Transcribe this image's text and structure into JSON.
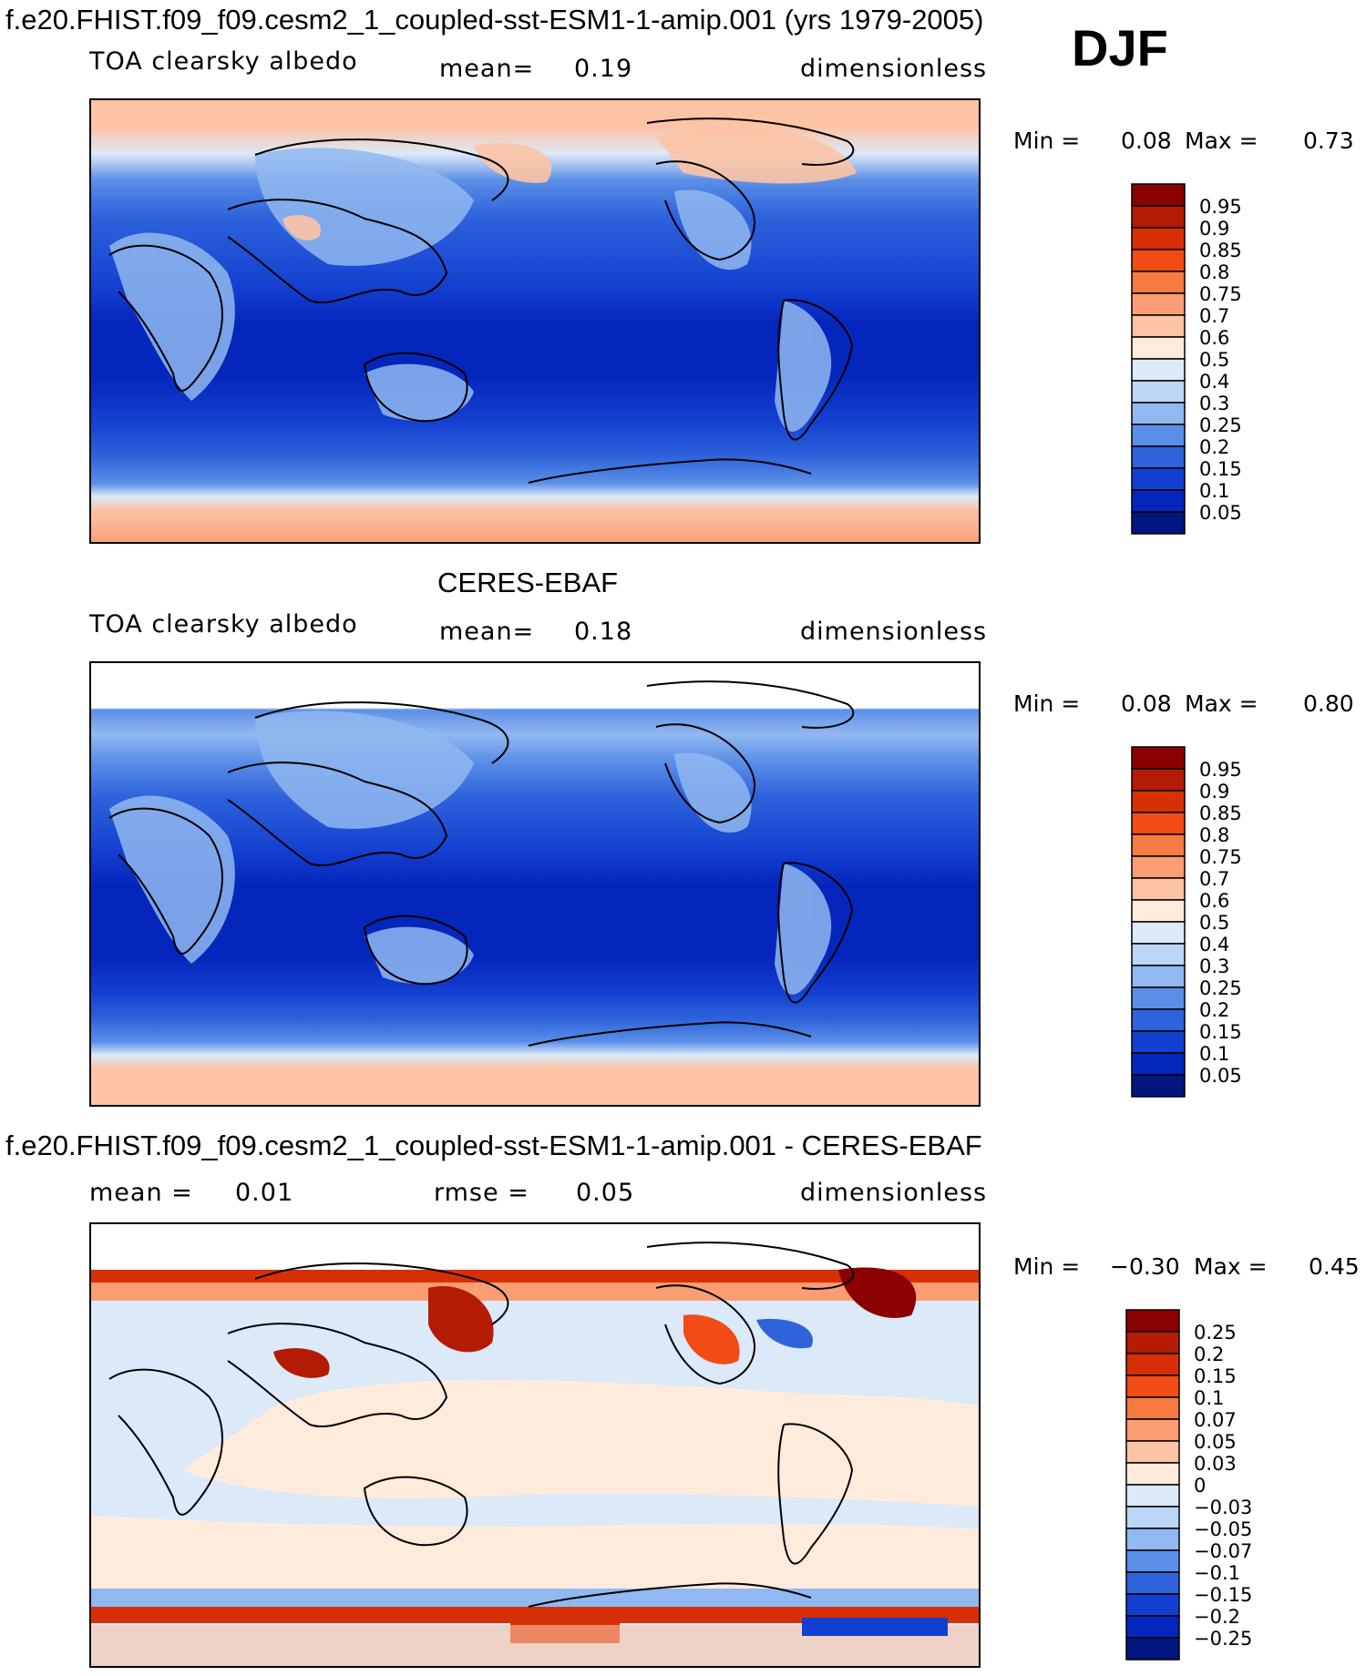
{
  "season": "DJF",
  "panels": [
    {
      "title": "f.e20.FHIST.f09_f09.cesm2_1_coupled-sst-ESM1-1-amip.001 (yrs 1979-2005)",
      "left_label": "TOA clearsky albedo",
      "center_label": "mean=",
      "center_value": "0.19",
      "units": "dimensionless",
      "min_label": "Min =",
      "min_value": "0.08",
      "max_label": "Max =",
      "max_value": "0.73"
    },
    {
      "title": "CERES-EBAF",
      "left_label": "TOA clearsky albedo",
      "center_label": "mean=",
      "center_value": "0.18",
      "units": "dimensionless",
      "min_label": "Min =",
      "min_value": "0.08",
      "max_label": "Max =",
      "max_value": "0.80"
    },
    {
      "title": "f.e20.FHIST.f09_f09.cesm2_1_coupled-sst-ESM1-1-amip.001 - CERES-EBAF",
      "left_label": "mean =",
      "left_value": "0.01",
      "center_label": "rmse =",
      "center_value": "0.05",
      "units": "dimensionless",
      "min_label": "Min =",
      "min_value": "−0.30",
      "max_label": "Max =",
      "max_value": "0.45"
    }
  ],
  "chart_data": [
    {
      "type": "heatmap",
      "field": "TOA clearsky albedo",
      "units": "dimensionless",
      "mean": 0.19,
      "min": 0.08,
      "max": 0.73,
      "colorbar": {
        "labels": [
          "0.95",
          "0.9",
          "0.85",
          "0.8",
          "0.75",
          "0.7",
          "0.6",
          "0.5",
          "0.4",
          "0.3",
          "0.25",
          "0.2",
          "0.15",
          "0.1",
          "0.05"
        ],
        "colors": [
          "#8b0000",
          "#b41b04",
          "#d83006",
          "#f24c16",
          "#f77a43",
          "#fa9d72",
          "#fcc3a5",
          "#feebdb",
          "#dce9f9",
          "#bcd6f6",
          "#91b8f0",
          "#5b8fe7",
          "#2e63dc",
          "#1340d0",
          "#0526bc",
          "#021680"
        ]
      }
    },
    {
      "type": "heatmap",
      "field": "TOA clearsky albedo",
      "units": "dimensionless",
      "mean": 0.18,
      "min": 0.08,
      "max": 0.8,
      "colorbar": {
        "labels": [
          "0.95",
          "0.9",
          "0.85",
          "0.8",
          "0.75",
          "0.7",
          "0.6",
          "0.5",
          "0.4",
          "0.3",
          "0.25",
          "0.2",
          "0.15",
          "0.1",
          "0.05"
        ],
        "colors": [
          "#8b0000",
          "#b41b04",
          "#d83006",
          "#f24c16",
          "#f77a43",
          "#fa9d72",
          "#fcc3a5",
          "#feebdb",
          "#dce9f9",
          "#bcd6f6",
          "#91b8f0",
          "#5b8fe7",
          "#2e63dc",
          "#1340d0",
          "#0526bc",
          "#021680"
        ]
      }
    },
    {
      "type": "heatmap",
      "field": "difference",
      "units": "dimensionless",
      "mean": 0.01,
      "rmse": 0.05,
      "min": -0.3,
      "max": 0.45,
      "colorbar": {
        "labels": [
          "0.25",
          "0.2",
          "0.15",
          "0.1",
          "0.07",
          "0.05",
          "0.03",
          "0",
          "−0.03",
          "−0.05",
          "−0.07",
          "−0.1",
          "−0.15",
          "−0.2",
          "−0.25"
        ],
        "colors": [
          "#8b0000",
          "#b41b04",
          "#d83006",
          "#f24c16",
          "#f77a43",
          "#fa9d72",
          "#fcc3a5",
          "#feebdb",
          "#dce9f9",
          "#bcd6f6",
          "#91b8f0",
          "#5b8fe7",
          "#2e63dc",
          "#1340d0",
          "#0526bc",
          "#021680"
        ]
      }
    }
  ]
}
